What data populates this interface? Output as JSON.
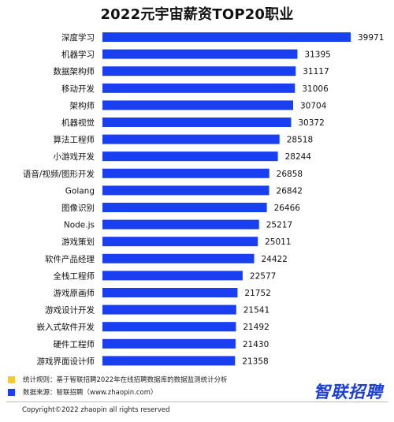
{
  "chart_data": {
    "type": "bar",
    "orientation": "horizontal",
    "title": "2022元宇宙薪资TOP20职业",
    "categories": [
      "深度学习",
      "机器学习",
      "数据架构师",
      "移动开发",
      "架构师",
      "机器视觉",
      "算法工程师",
      "小游戏开发",
      "语音/视频/图形开发",
      "Golang",
      "图像识别",
      "Node.js",
      "游戏策划",
      "软件产品经理",
      "全栈工程师",
      "游戏原画师",
      "游戏设计开发",
      "嵌入式软件开发",
      "硬件工程师",
      "游戏界面设计师"
    ],
    "values": [
      39971,
      31395,
      31117,
      31006,
      30704,
      30372,
      28518,
      28244,
      26858,
      26842,
      26466,
      25217,
      25011,
      24422,
      22577,
      21752,
      21541,
      21492,
      21430,
      21358
    ],
    "bar_color": "#1a3ff0",
    "grid": false
  },
  "footer": {
    "note1": "统计规则：基于智联招聘2022年在线招聘数据库的数据监测统计分析",
    "note1_color": "#f5c842",
    "note2": "数据来源：智联招聘（www.zhaopin.com）",
    "note2_color": "#1a3ff0",
    "brand": "智联招聘",
    "copyright": "Copyright©2022 zhaopin all rights reserved"
  }
}
